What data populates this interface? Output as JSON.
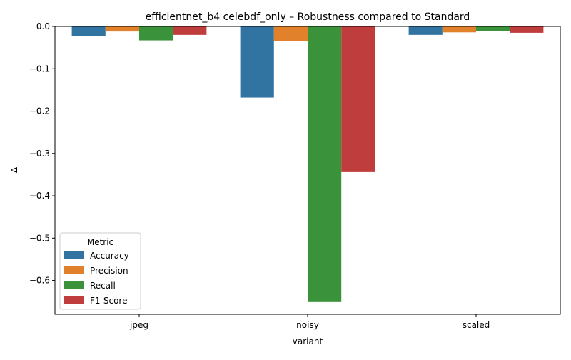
{
  "chart_data": {
    "type": "bar",
    "title": "efficientnet_b4 celebdf_only – Robustness compared to Standard",
    "xlabel": "variant",
    "ylabel": "Δ",
    "categories": [
      "jpeg",
      "noisy",
      "scaled"
    ],
    "ylim": [
      -0.68,
      0.0
    ],
    "yticks": [
      0.0,
      -0.1,
      -0.2,
      -0.3,
      -0.4,
      -0.5,
      -0.6
    ],
    "ytick_labels": [
      "0.0",
      "−0.1",
      "−0.2",
      "−0.3",
      "−0.4",
      "−0.5",
      "−0.6"
    ],
    "grid": false,
    "legend": {
      "title": "Metric",
      "placement": "lower-left"
    },
    "series": [
      {
        "name": "Accuracy",
        "color": "#3274a1",
        "values": [
          -0.023,
          -0.168,
          -0.02
        ]
      },
      {
        "name": "Precision",
        "color": "#e1812c",
        "values": [
          -0.012,
          -0.034,
          -0.014
        ]
      },
      {
        "name": "Recall",
        "color": "#3a923a",
        "values": [
          -0.033,
          -0.651,
          -0.011
        ]
      },
      {
        "name": "F1-Score",
        "color": "#c03d3e",
        "values": [
          -0.02,
          -0.344,
          -0.015
        ]
      }
    ]
  }
}
